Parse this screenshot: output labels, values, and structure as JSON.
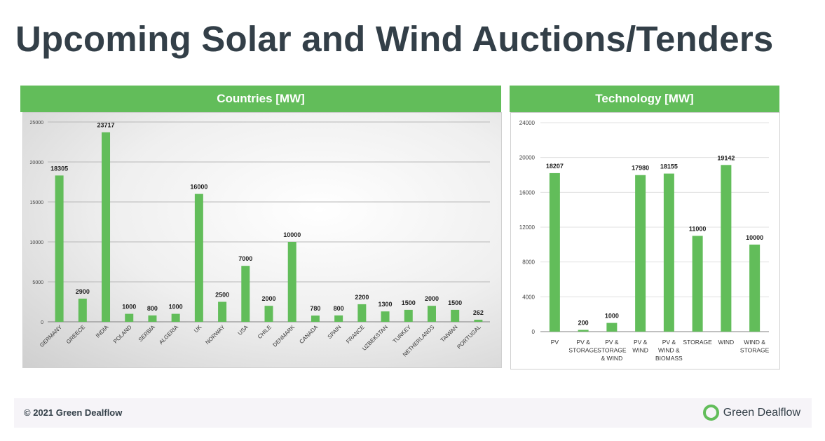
{
  "title": "Upcoming Solar and Wind Auctions/Tenders",
  "footer": {
    "copyright": "© 2021 Green Dealflow",
    "brand": "Green Dealflow"
  },
  "colors": {
    "bar": "#62bd5a",
    "header": "#62bd5a",
    "title": "#333f48"
  },
  "chart_data": [
    {
      "type": "bar",
      "title": "Countries [MW]",
      "categories": [
        "GERMANY",
        "GREECE",
        "INDIA",
        "POLAND",
        "SERBIA",
        "ALGERIA",
        "UK",
        "NORWAY",
        "USA",
        "CHILE",
        "DENMARK",
        "CANADA",
        "SPAIN",
        "FRANCE",
        "UZBEKSTAN",
        "TURKEY",
        "NETHERLANDS",
        "TAIWAN",
        "PORTUGAL"
      ],
      "values": [
        18305,
        2900,
        23717,
        1000,
        800,
        1000,
        16000,
        2500,
        7000,
        2000,
        10000,
        780,
        800,
        2200,
        1300,
        1500,
        2000,
        1500,
        262
      ],
      "yticks": [
        "0",
        "5000",
        "10000",
        "15000",
        "20000",
        "25000"
      ],
      "ylim": [
        0,
        25000
      ],
      "grid": true,
      "legend": false,
      "xlabel": "",
      "ylabel": ""
    },
    {
      "type": "bar",
      "title": "Technology [MW]",
      "categories": [
        "PV",
        "PV & STORAGE",
        "PV & STORAGE & WIND",
        "PV & WIND",
        "PV & WIND & BIOMASS",
        "STORAGE",
        "WIND",
        "WIND & STORAGE"
      ],
      "category_lines": [
        [
          "PV"
        ],
        [
          "PV &",
          "STORAGE"
        ],
        [
          "PV &",
          "STORAGE",
          "& WIND"
        ],
        [
          "PV &",
          "WIND"
        ],
        [
          "PV &",
          "WIND &",
          "BIOMASS"
        ],
        [
          "STORAGE"
        ],
        [
          "WIND"
        ],
        [
          "WIND &",
          "STORAGE"
        ]
      ],
      "values": [
        18207,
        200,
        1000,
        17980,
        18155,
        11000,
        19142,
        10000
      ],
      "yticks": [
        "0",
        "4000",
        "8000",
        "12000",
        "16000",
        "20000",
        "24000"
      ],
      "ylim": [
        0,
        24000
      ],
      "grid": true,
      "legend": false,
      "xlabel": "",
      "ylabel": ""
    }
  ]
}
